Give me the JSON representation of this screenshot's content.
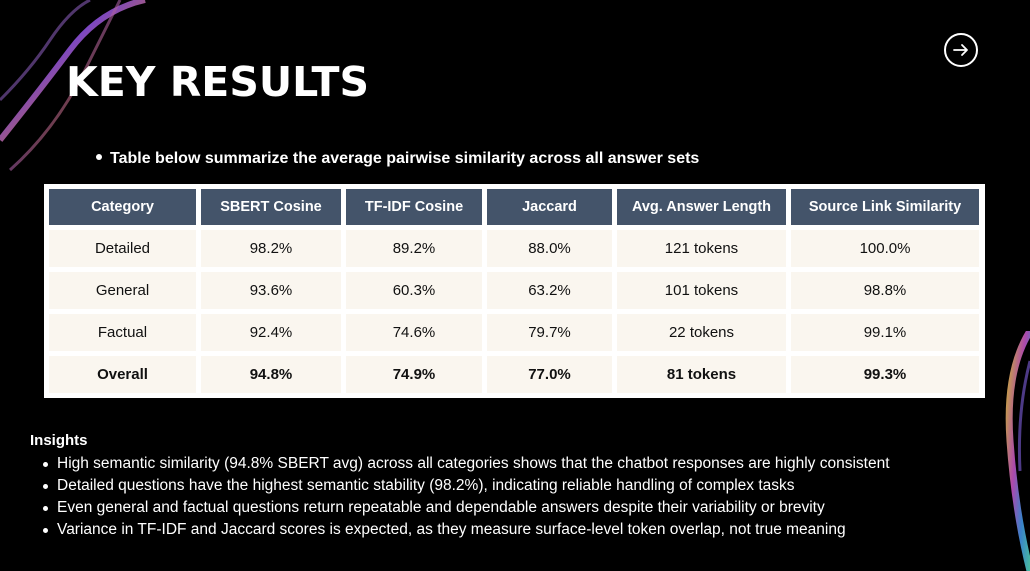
{
  "slide": {
    "title": "KEY RESULTS",
    "summary": "Table below summarize the average pairwise similarity across all answer sets"
  },
  "table": {
    "headers": [
      "Category",
      "SBERT Cosine",
      "TF-IDF Cosine",
      "Jaccard",
      "Avg. Answer Length",
      "Source Link Similarity"
    ],
    "rows": [
      [
        "Detailed",
        "98.2%",
        "89.2%",
        "88.0%",
        "121 tokens",
        "100.0%"
      ],
      [
        "General",
        "93.6%",
        "60.3%",
        "63.2%",
        "101 tokens",
        "98.8%"
      ],
      [
        "Factual",
        "92.4%",
        "74.6%",
        "79.7%",
        "22 tokens",
        "99.1%"
      ],
      [
        "Overall",
        "94.8%",
        "74.9%",
        "77.0%",
        "81 tokens",
        "99.3%"
      ]
    ]
  },
  "insights": {
    "heading": "Insights",
    "items": [
      "High semantic similarity (94.8% SBERT avg) across all categories shows that the chatbot responses are highly consistent",
      "Detailed questions have the highest semantic stability (98.2%), indicating reliable handling of complex tasks",
      "Even general and factual questions return repeatable and dependable answers despite their variability or brevity",
      "Variance in TF-IDF and Jaccard scores is expected, as they measure surface-level token overlap, not true meaning"
    ]
  },
  "icons": {
    "next": "arrow-right-circle-icon"
  },
  "colors": {
    "background": "#000000",
    "header_fill": "#44546a",
    "cell_fill": "#faf6ef"
  }
}
